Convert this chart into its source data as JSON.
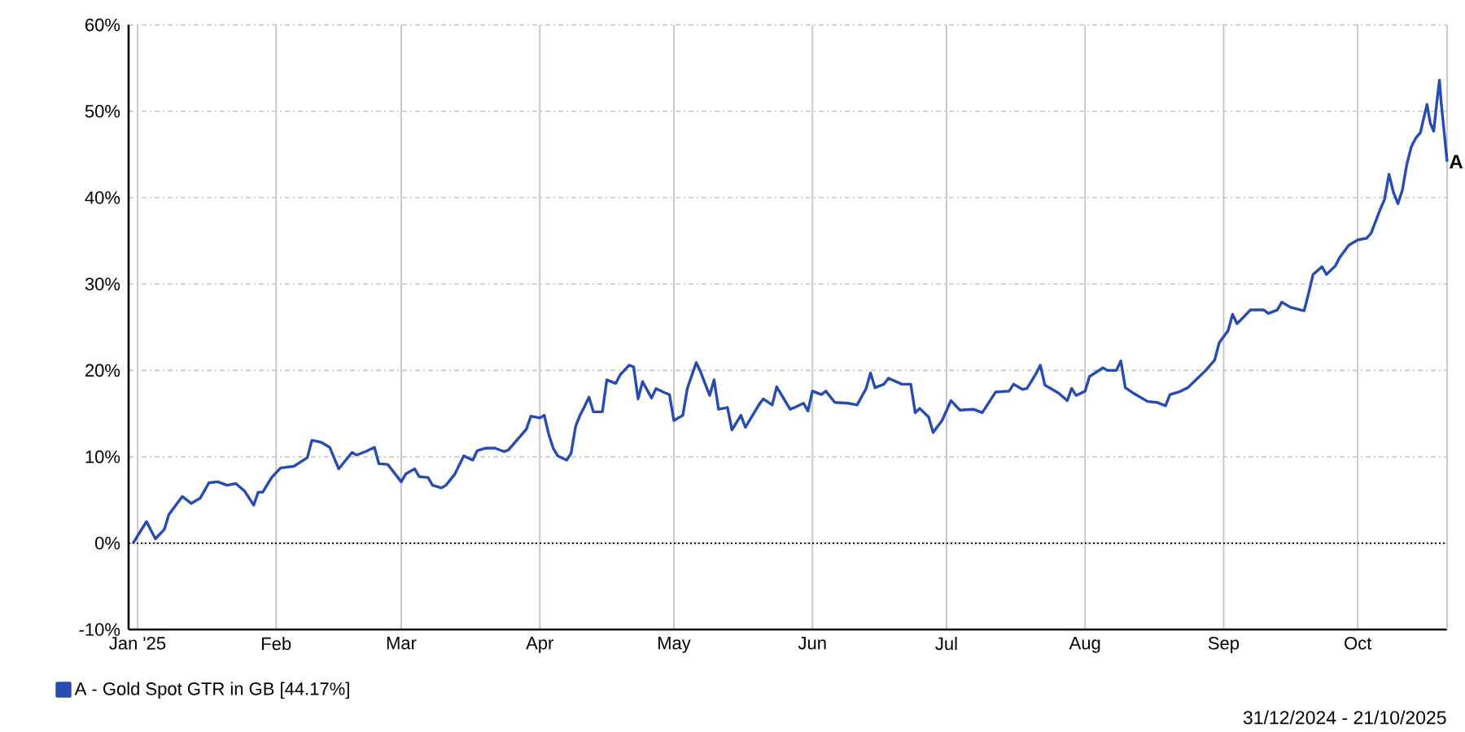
{
  "chart_data": {
    "type": "line",
    "line_style": "solid",
    "grid": true,
    "legend": "bottom",
    "xlim": [
      "2024-12-30",
      "2025-10-21"
    ],
    "xticks": [
      {
        "value": "2025-01-01",
        "label": "Jan '25"
      },
      {
        "value": "2025-02-01",
        "label": "Feb"
      },
      {
        "value": "2025-03-01",
        "label": "Mar"
      },
      {
        "value": "2025-04-01",
        "label": "Apr"
      },
      {
        "value": "2025-05-01",
        "label": "May"
      },
      {
        "value": "2025-06-01",
        "label": "Jun"
      },
      {
        "value": "2025-07-01",
        "label": "Jul"
      },
      {
        "value": "2025-08-01",
        "label": "Aug"
      },
      {
        "value": "2025-09-01",
        "label": "Sep"
      },
      {
        "value": "2025-10-01",
        "label": "Oct"
      }
    ],
    "ylim": [
      -10,
      60
    ],
    "yticks": [
      {
        "value": -10,
        "label": "-10%"
      },
      {
        "value": 0,
        "label": "0%"
      },
      {
        "value": 10,
        "label": "10%"
      },
      {
        "value": 20,
        "label": "20%"
      },
      {
        "value": 30,
        "label": "30%"
      },
      {
        "value": 40,
        "label": "40%"
      },
      {
        "value": 50,
        "label": "50%"
      },
      {
        "value": 60,
        "label": "60%"
      }
    ],
    "x": [
      "2024-12-31",
      "2025-01-03",
      "2025-01-05",
      "2025-01-07",
      "2025-01-08",
      "2025-01-11",
      "2025-01-13",
      "2025-01-15",
      "2025-01-17",
      "2025-01-19",
      "2025-01-21",
      "2025-01-23",
      "2025-01-25",
      "2025-01-27",
      "2025-01-28",
      "2025-01-29",
      "2025-01-31",
      "2025-02-02",
      "2025-02-05",
      "2025-02-08",
      "2025-02-09",
      "2025-02-11",
      "2025-02-13",
      "2025-02-15",
      "2025-02-18",
      "2025-02-19",
      "2025-02-21",
      "2025-02-23",
      "2025-02-24",
      "2025-02-26",
      "2025-03-01",
      "2025-03-02",
      "2025-03-04",
      "2025-03-05",
      "2025-03-07",
      "2025-03-08",
      "2025-03-10",
      "2025-03-11",
      "2025-03-13",
      "2025-03-15",
      "2025-03-17",
      "2025-03-18",
      "2025-03-20",
      "2025-03-22",
      "2025-03-24",
      "2025-03-25",
      "2025-03-27",
      "2025-03-29",
      "2025-03-30",
      "2025-04-01",
      "2025-04-02",
      "2025-04-03",
      "2025-04-04",
      "2025-04-05",
      "2025-04-07",
      "2025-04-08",
      "2025-04-09",
      "2025-04-10",
      "2025-04-11",
      "2025-04-12",
      "2025-04-13",
      "2025-04-15",
      "2025-04-16",
      "2025-04-18",
      "2025-04-19",
      "2025-04-21",
      "2025-04-22",
      "2025-04-23",
      "2025-04-24",
      "2025-04-26",
      "2025-04-27",
      "2025-04-29",
      "2025-04-30",
      "2025-05-01",
      "2025-05-03",
      "2025-05-04",
      "2025-05-06",
      "2025-05-07",
      "2025-05-09",
      "2025-05-10",
      "2025-05-11",
      "2025-05-13",
      "2025-05-14",
      "2025-05-16",
      "2025-05-17",
      "2025-05-20",
      "2025-05-21",
      "2025-05-23",
      "2025-05-24",
      "2025-05-27",
      "2025-05-28",
      "2025-05-30",
      "2025-05-31",
      "2025-06-01",
      "2025-06-03",
      "2025-06-04",
      "2025-06-06",
      "2025-06-09",
      "2025-06-10",
      "2025-06-11",
      "2025-06-13",
      "2025-06-14",
      "2025-06-15",
      "2025-06-17",
      "2025-06-18",
      "2025-06-21",
      "2025-06-23",
      "2025-06-24",
      "2025-06-25",
      "2025-06-27",
      "2025-06-28",
      "2025-06-30",
      "2025-07-02",
      "2025-07-04",
      "2025-07-07",
      "2025-07-09",
      "2025-07-10",
      "2025-07-12",
      "2025-07-15",
      "2025-07-16",
      "2025-07-18",
      "2025-07-19",
      "2025-07-21",
      "2025-07-22",
      "2025-07-23",
      "2025-07-26",
      "2025-07-28",
      "2025-07-29",
      "2025-07-30",
      "2025-08-01",
      "2025-08-02",
      "2025-08-05",
      "2025-08-06",
      "2025-08-08",
      "2025-08-09",
      "2025-08-10",
      "2025-08-12",
      "2025-08-15",
      "2025-08-17",
      "2025-08-19",
      "2025-08-20",
      "2025-08-22",
      "2025-08-24",
      "2025-08-26",
      "2025-08-28",
      "2025-08-30",
      "2025-08-31",
      "2025-09-02",
      "2025-09-03",
      "2025-09-04",
      "2025-09-07",
      "2025-09-10",
      "2025-09-11",
      "2025-09-13",
      "2025-09-14",
      "2025-09-16",
      "2025-09-19",
      "2025-09-20",
      "2025-09-21",
      "2025-09-23",
      "2025-09-24",
      "2025-09-26",
      "2025-09-27",
      "2025-09-29",
      "2025-10-01",
      "2025-10-03",
      "2025-10-04",
      "2025-10-06",
      "2025-10-07",
      "2025-10-08",
      "2025-10-09",
      "2025-10-10",
      "2025-10-11",
      "2025-10-12",
      "2025-10-13",
      "2025-10-14",
      "2025-10-15",
      "2025-10-16T12:00",
      "2025-10-17T06:00",
      "2025-10-18",
      "2025-10-18T17:00",
      "2025-10-19T07:00",
      "2025-10-19T17:00",
      "2025-10-20T05:00",
      "2025-10-21"
    ],
    "series": [
      {
        "name": "A - Gold Spot GTR in GB [44.17%]",
        "color": "#264cb2",
        "values": [
          0,
          2.5,
          0.5,
          1.6,
          3.3,
          5.4,
          4.6,
          5.2,
          7.0,
          7.1,
          6.7,
          6.9,
          6.0,
          4.4,
          5.9,
          5.9,
          7.6,
          8.7,
          8.9,
          9.9,
          11.9,
          11.7,
          11.1,
          8.6,
          10.5,
          10.2,
          10.6,
          11.1,
          9.2,
          9.1,
          7.1,
          8.0,
          8.6,
          7.7,
          7.6,
          6.7,
          6.4,
          6.7,
          8.0,
          10.1,
          9.6,
          10.7,
          11.0,
          11.0,
          10.6,
          10.8,
          12.0,
          13.2,
          14.7,
          14.5,
          14.8,
          12.6,
          11.0,
          10.1,
          9.6,
          10.4,
          13.5,
          14.8,
          15.8,
          16.9,
          15.2,
          15.2,
          18.9,
          18.5,
          19.5,
          20.6,
          20.4,
          16.7,
          18.7,
          16.8,
          17.9,
          17.4,
          17.2,
          14.2,
          14.8,
          17.9,
          20.9,
          19.8,
          17.1,
          18.9,
          15.5,
          15.7,
          13.1,
          14.8,
          13.4,
          16.0,
          16.7,
          16.0,
          18.1,
          15.5,
          15.7,
          16.2,
          15.3,
          17.6,
          17.2,
          17.6,
          16.3,
          16.2,
          16.1,
          16.0,
          17.9,
          19.7,
          18.0,
          18.4,
          19.1,
          18.4,
          18.4,
          15.1,
          15.6,
          14.6,
          12.8,
          14.2,
          16.5,
          15.4,
          15.5,
          15.1,
          15.9,
          17.5,
          17.6,
          18.4,
          17.8,
          17.9,
          19.6,
          20.6,
          18.3,
          17.4,
          16.5,
          17.9,
          17.1,
          17.6,
          19.3,
          20.3,
          20.0,
          20.0,
          21.1,
          18.0,
          17.3,
          16.4,
          16.3,
          15.9,
          17.2,
          17.5,
          18.0,
          19.0,
          20.0,
          21.2,
          23.2,
          24.6,
          26.5,
          25.4,
          27.0,
          27.0,
          26.6,
          27.0,
          27.9,
          27.3,
          26.9,
          28.9,
          31.1,
          32.0,
          31.1,
          32.1,
          33.1,
          34.5,
          35.1,
          35.3,
          35.9,
          38.6,
          39.8,
          42.7,
          40.6,
          39.3,
          40.9,
          43.9,
          45.9,
          46.9,
          47.5,
          50.8,
          48.6,
          47.7,
          51.1,
          53.6,
          50.8,
          48.3,
          44.17
        ]
      }
    ],
    "ref_lines": [
      {
        "axis": "y",
        "value": 0,
        "color": "#000000",
        "line_style": "dotted"
      }
    ],
    "annotations": [
      {
        "text": "A",
        "x": "2025-10-21",
        "y": 44.17
      },
      "31/12/2024 - 21/10/2025"
    ]
  }
}
